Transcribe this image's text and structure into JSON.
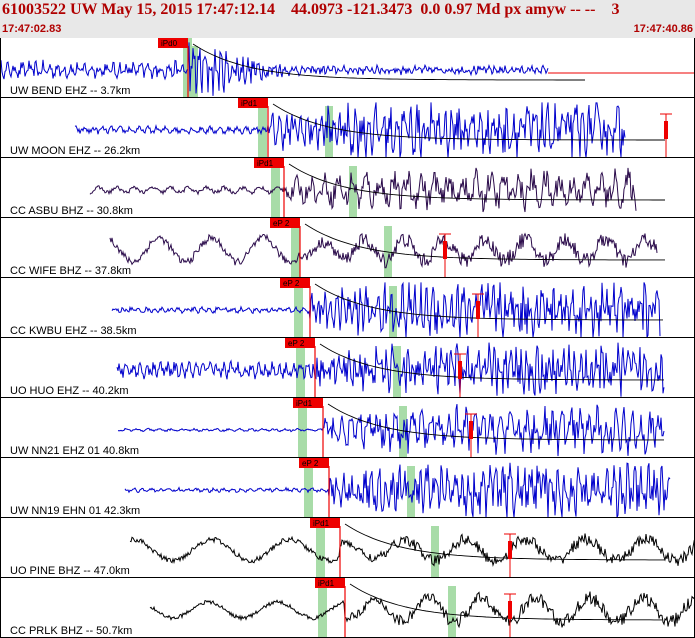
{
  "header": {
    "title": "61003522 UW May 15, 2015 17:47:12.14    44.0973 -121.3473  0.0 0.97 Md px amyw -- --    3",
    "start_time": "17:47:02.83",
    "end_time": "17:47:40.86"
  },
  "colors": {
    "header_bg": "#e8e8e8",
    "header_text": "#b00000",
    "trace_blue": "#0000cc",
    "trace_purple": "#2a0a4a",
    "trace_black": "#000000",
    "pick": "#ee0000",
    "window": "#a8dca8"
  },
  "traces": [
    {
      "label": "UW BEND EHZ -- 3.7km",
      "pick_label": "iPd0",
      "color": "blue",
      "p": 188,
      "ws": 183,
      "wn": 194,
      "s": 192,
      "start": 0,
      "end": 548,
      "pre": 0.6,
      "post": 1.4,
      "freq": 0.9,
      "noise": 0.85,
      "decay": true,
      "coda": true
    },
    {
      "label": "UW MOON EHZ -- 26.2km",
      "pick_label": "iPd1",
      "color": "blue",
      "p": 268,
      "ws": 258,
      "wn": 329,
      "s": 329,
      "start": 75,
      "end": 625,
      "pre": 0.25,
      "post": 1.0,
      "freq": 0.7,
      "noise": 0.9,
      "coda": true,
      "mark": 666
    },
    {
      "label": "CC ASBU BHZ -- 30.8km",
      "pick_label": "iPd1",
      "color": "purple",
      "p": 284,
      "ws": 271,
      "wn": 353,
      "s": 353,
      "start": 90,
      "end": 636,
      "pre": 0.3,
      "post": 0.9,
      "freq": 0.35,
      "noise": 0.6,
      "coda": true
    },
    {
      "label": "CC WIFE BHZ -- 37.8km",
      "pick_label": "eP 2",
      "color": "purple",
      "p": 300,
      "ws": 291,
      "wn": 388,
      "s": 388,
      "start": 110,
      "end": 657,
      "pre": 0.9,
      "post": 0.9,
      "freq": 0.12,
      "noise": 0.4,
      "coda": true,
      "mark": 445
    },
    {
      "label": "CC KWBU EHZ -- 38.5km",
      "pick_label": "eP 2",
      "color": "blue",
      "p": 310,
      "ws": 294,
      "wn": 393,
      "s": 393,
      "start": 112,
      "end": 660,
      "pre": 0.2,
      "post": 1.0,
      "freq": 0.8,
      "noise": 0.9,
      "coda": true,
      "mark": 478
    },
    {
      "label": "UO HUO EHZ -- 40.2km",
      "pick_label": "eP 2",
      "color": "blue",
      "p": 315,
      "ws": 296,
      "wn": 397,
      "s": 397,
      "start": 117,
      "end": 664,
      "pre": 0.55,
      "post": 0.9,
      "freq": 0.9,
      "noise": 0.9,
      "coda": true,
      "mark": 460
    },
    {
      "label": "UW NN21 EHZ 01 40.8km",
      "pick_label": "iPd1",
      "color": "blue",
      "p": 323,
      "ws": 298,
      "wn": 403,
      "s": 403,
      "start": 118,
      "end": 664,
      "pre": 0.1,
      "post": 0.9,
      "freq": 0.55,
      "noise": 0.8,
      "coda": true,
      "mark": 471
    },
    {
      "label": "UW NN19 EHN 01 42.3km",
      "pick_label": "eP 2",
      "color": "blue",
      "p": 329,
      "ws": 304,
      "wn": 411,
      "s": 411,
      "start": 125,
      "end": 670,
      "pre": 0.15,
      "post": 1.0,
      "freq": 0.7,
      "noise": 0.85,
      "coda": false
    },
    {
      "label": "UO PINE BHZ -- 47.0km",
      "pick_label": "iPd1",
      "color": "black",
      "p": 340,
      "ws": 316,
      "wn": 435,
      "s": 435,
      "start": 130,
      "end": 695,
      "pre": 0.8,
      "post": 0.9,
      "freq": 0.08,
      "noise": 0.3,
      "coda": true,
      "mark": 510
    },
    {
      "label": "CC PRLK BHZ -- 50.7km",
      "pick_label": "iPd1",
      "color": "black",
      "p": 345,
      "ws": 318,
      "wn": 452,
      "s": 452,
      "start": 150,
      "end": 695,
      "pre": 0.6,
      "post": 1.0,
      "freq": 0.09,
      "noise": 0.3,
      "coda": true,
      "mark": 510
    }
  ]
}
